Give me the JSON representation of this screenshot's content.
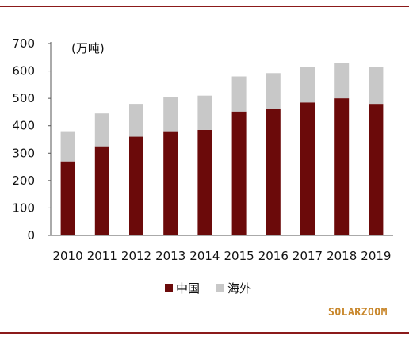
{
  "chart_data": {
    "type": "bar",
    "stacked": true,
    "categories": [
      "2010",
      "2011",
      "2012",
      "2013",
      "2014",
      "2015",
      "2016",
      "2017",
      "2018",
      "2019"
    ],
    "series": [
      {
        "name": "中国",
        "color": "#6b0a0a",
        "values": [
          270,
          325,
          360,
          380,
          385,
          452,
          462,
          485,
          500,
          480
        ]
      },
      {
        "name": "海外",
        "color": "#c8c8c8",
        "values": [
          110,
          120,
          120,
          125,
          125,
          128,
          130,
          130,
          130,
          135
        ]
      }
    ],
    "unit_label": "(万吨)",
    "ylim": [
      0,
      700
    ],
    "yticks": [
      "0",
      "100",
      "200",
      "300",
      "400",
      "500",
      "600",
      "700"
    ],
    "grid": false,
    "legend_position": "bottom"
  },
  "watermark": "SOLARZOOM",
  "colors": {
    "accent_rule": "#8b1a1a",
    "axis": "#555555"
  }
}
